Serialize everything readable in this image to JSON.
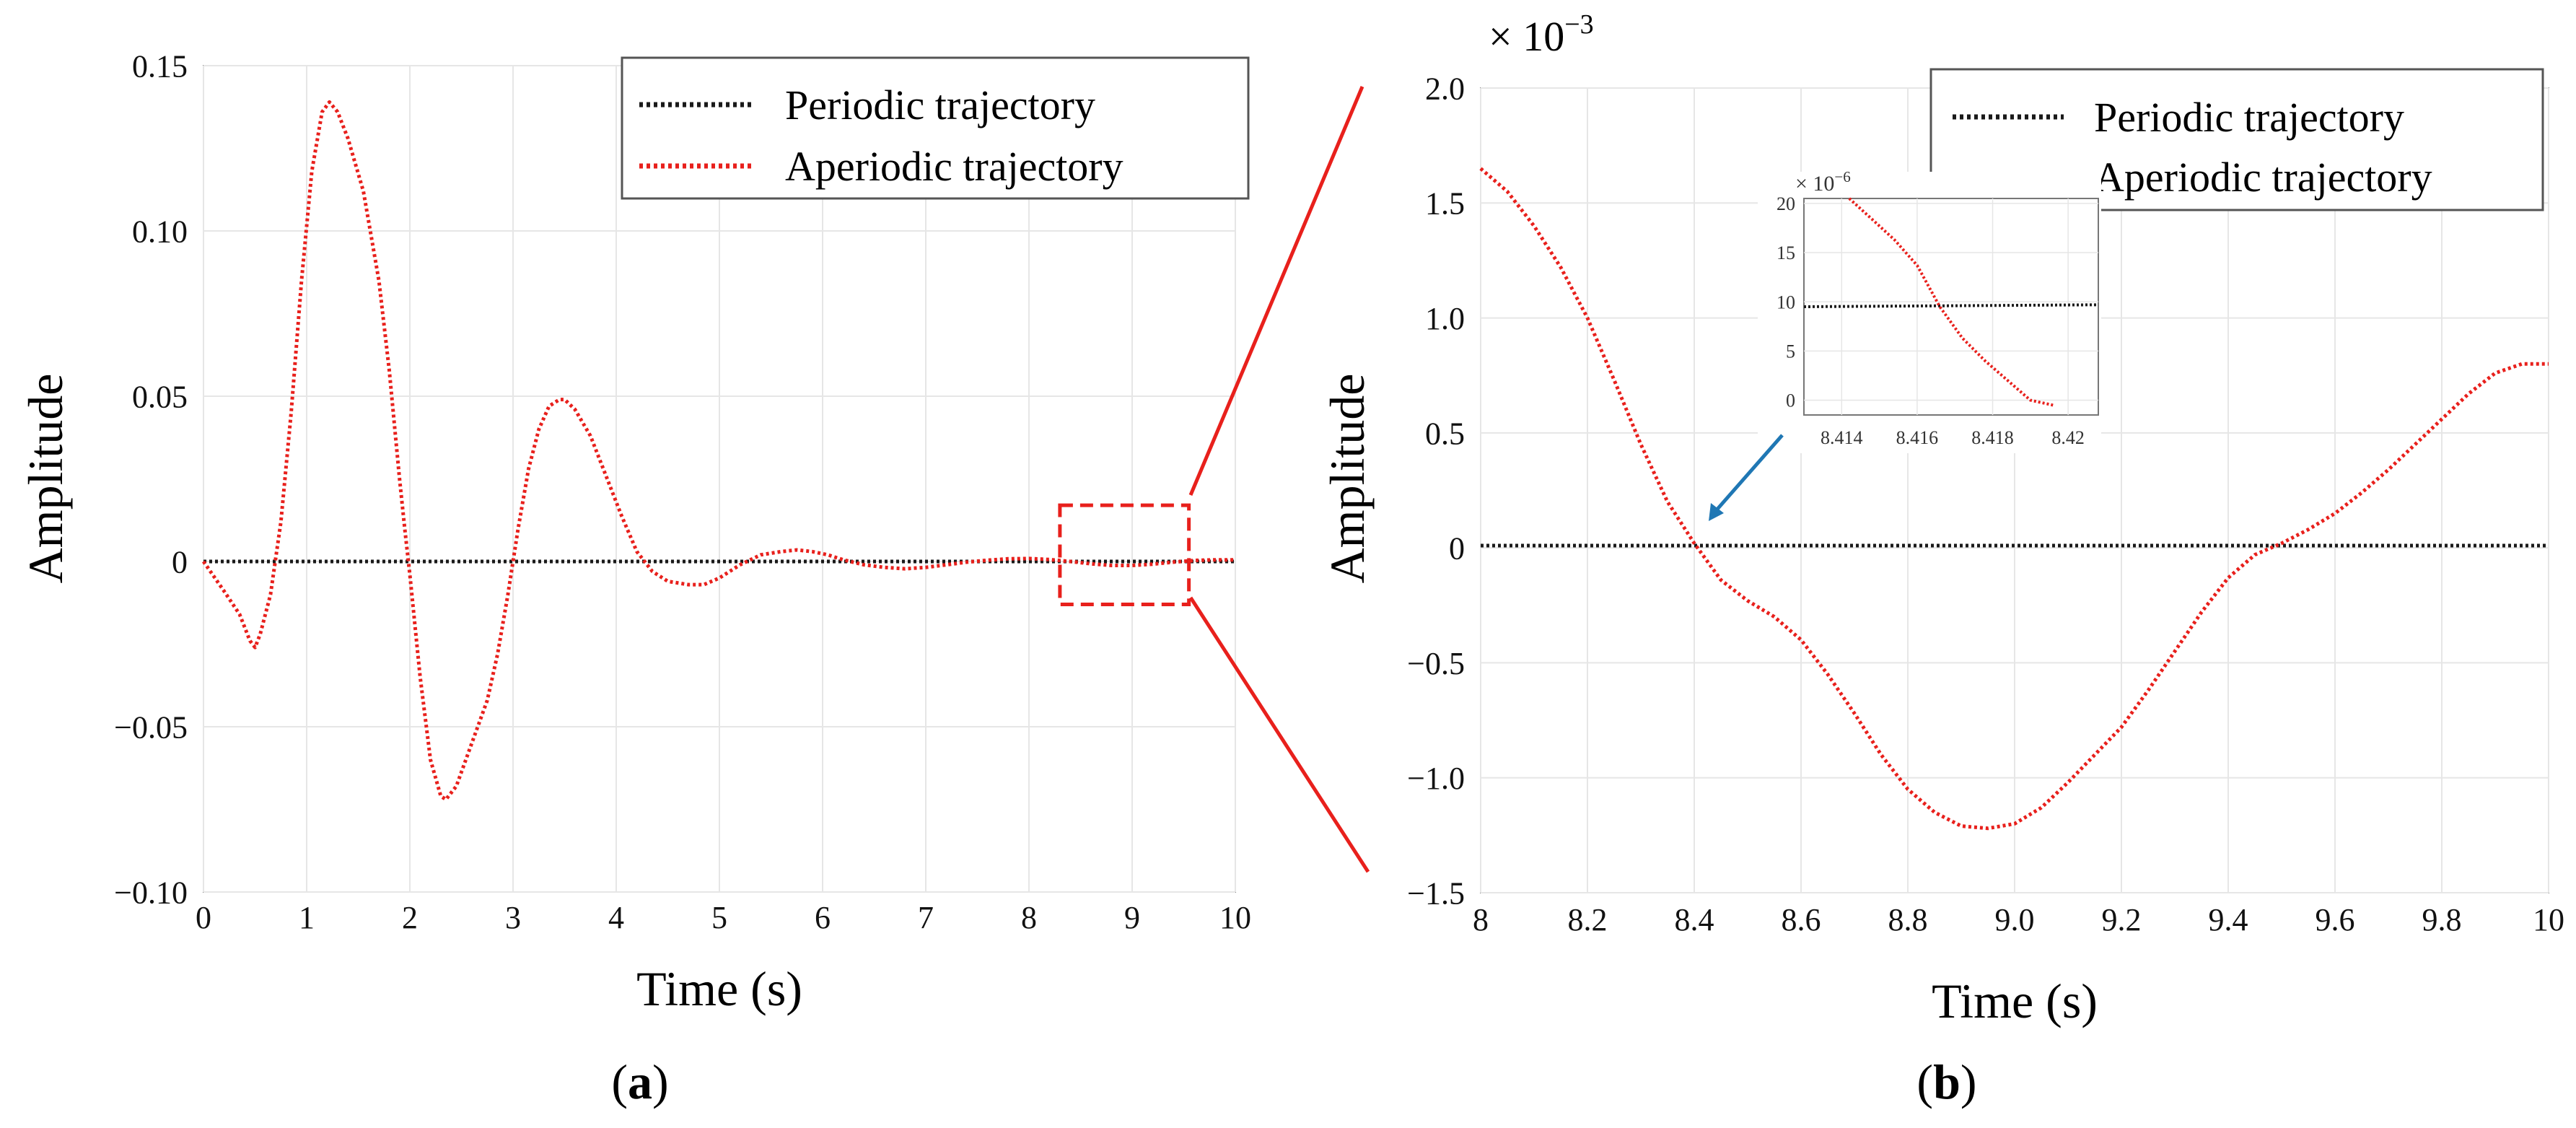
{
  "figure": {
    "panel_a_caption_open": "(",
    "panel_a_caption_letter": "a",
    "panel_a_caption_close": ")",
    "panel_b_caption_open": "(",
    "panel_b_caption_letter": "b",
    "panel_b_caption_close": ")"
  },
  "colors": {
    "periodic": "#1a1a1a",
    "aperiodic": "#e8201c",
    "zoom_box": "#e8201c",
    "arrow": "#1f77b4",
    "grid": "#e6e6e6",
    "axis": "#444444"
  },
  "chart_data": [
    {
      "id": "a",
      "type": "line",
      "title": "",
      "xlabel": "Time (s)",
      "ylabel": "Amplitude",
      "xlim": [
        0,
        10
      ],
      "ylim": [
        -0.1,
        0.15
      ],
      "xticks": [
        0,
        1,
        2,
        3,
        4,
        5,
        6,
        7,
        8,
        9,
        10
      ],
      "xtick_labels": [
        "0",
        "1",
        "2",
        "3",
        "4",
        "5",
        "6",
        "7",
        "8",
        "9",
        "10"
      ],
      "yticks": [
        -0.1,
        -0.05,
        0,
        0.05,
        0.1,
        0.15
      ],
      "ytick_labels": [
        "−0.10",
        "−0.05",
        "0",
        "0.05",
        "0.10",
        "0.15"
      ],
      "grid": true,
      "legend": "top-right",
      "zoom_region": {
        "x": [
          8.3,
          9.55
        ],
        "y": [
          -0.013,
          0.017
        ]
      },
      "series": [
        {
          "name": "Periodic trajectory",
          "style": "dotted",
          "x": [
            0,
            10
          ],
          "y": [
            0,
            0
          ]
        },
        {
          "name": "Aperiodic trajectory",
          "style": "dotted",
          "x": [
            0,
            0.2,
            0.35,
            0.45,
            0.5,
            0.55,
            0.65,
            0.75,
            0.85,
            0.95,
            1.05,
            1.15,
            1.22,
            1.3,
            1.4,
            1.55,
            1.7,
            1.8,
            1.9,
            1.95,
            2.0,
            2.1,
            2.2,
            2.3,
            2.35,
            2.45,
            2.6,
            2.75,
            2.85,
            2.95,
            3.05,
            3.15,
            3.25,
            3.35,
            3.45,
            3.5,
            3.6,
            3.75,
            3.9,
            4.05,
            4.2,
            4.35,
            4.5,
            4.7,
            4.85,
            5.0,
            5.2,
            5.4,
            5.6,
            5.75,
            5.9,
            6.05,
            6.2,
            6.4,
            6.6,
            6.8,
            7.0,
            7.2,
            7.4,
            7.6,
            7.8,
            8.0,
            8.2,
            8.4,
            8.6,
            8.8,
            9.0,
            9.2,
            9.4,
            9.6,
            9.8,
            10.0
          ],
          "y": [
            0,
            -0.009,
            -0.016,
            -0.024,
            -0.026,
            -0.022,
            -0.01,
            0.012,
            0.045,
            0.085,
            0.118,
            0.136,
            0.139,
            0.136,
            0.128,
            0.112,
            0.085,
            0.058,
            0.025,
            0.01,
            -0.004,
            -0.035,
            -0.06,
            -0.071,
            -0.072,
            -0.068,
            -0.055,
            -0.042,
            -0.028,
            -0.01,
            0.01,
            0.028,
            0.04,
            0.047,
            0.049,
            0.049,
            0.046,
            0.038,
            0.026,
            0.014,
            0.003,
            -0.003,
            -0.006,
            -0.007,
            -0.007,
            -0.005,
            -0.001,
            0.002,
            0.003,
            0.0035,
            0.003,
            0.002,
            0.0005,
            -0.001,
            -0.0018,
            -0.0022,
            -0.0018,
            -0.001,
            -0.0002,
            0.0004,
            0.0008,
            0.0009,
            0.0006,
            0.0,
            -0.0007,
            -0.0012,
            -0.0012,
            -0.0008,
            -0.0002,
            0.0003,
            0.0005,
            0.0005
          ]
        }
      ]
    },
    {
      "id": "b",
      "type": "line",
      "title": "",
      "xlabel": "Time (s)",
      "ylabel": "Amplitude",
      "scale_label_prefix": "× 10",
      "scale_label_exponent": "−3",
      "xlim": [
        8.0,
        10.0
      ],
      "ylim": [
        -1.5,
        2.0
      ],
      "xticks": [
        8.0,
        8.2,
        8.4,
        8.6,
        8.8,
        9.0,
        9.2,
        9.4,
        9.6,
        9.8,
        10.0
      ],
      "xtick_labels": [
        "8",
        "8.2",
        "8.4",
        "8.6",
        "8.8",
        "9.0",
        "9.2",
        "9.4",
        "9.6",
        "9.8",
        "10"
      ],
      "yticks": [
        -1.5,
        -1.0,
        -0.5,
        0,
        0.5,
        1.0,
        1.5,
        2.0
      ],
      "ytick_labels": [
        "−1.5",
        "−1.0",
        "−0.5",
        "0",
        "0.5",
        "1.0",
        "1.5",
        "2.0"
      ],
      "grid": true,
      "legend": "top-right",
      "series": [
        {
          "name": "Periodic trajectory",
          "style": "dotted",
          "x": [
            8.0,
            10.0
          ],
          "y": [
            0.01,
            0.01
          ]
        },
        {
          "name": "Aperiodic trajectory",
          "style": "dotted",
          "x": [
            8.0,
            8.05,
            8.1,
            8.15,
            8.2,
            8.25,
            8.3,
            8.35,
            8.4,
            8.45,
            8.5,
            8.55,
            8.6,
            8.65,
            8.7,
            8.75,
            8.8,
            8.85,
            8.9,
            8.95,
            9.0,
            9.05,
            9.1,
            9.15,
            9.2,
            9.25,
            9.3,
            9.35,
            9.4,
            9.45,
            9.5,
            9.55,
            9.6,
            9.65,
            9.7,
            9.75,
            9.8,
            9.85,
            9.9,
            9.95,
            10.0
          ],
          "y": [
            1.65,
            1.55,
            1.4,
            1.22,
            1.0,
            0.73,
            0.45,
            0.2,
            0.02,
            -0.14,
            -0.23,
            -0.3,
            -0.4,
            -0.55,
            -0.72,
            -0.9,
            -1.05,
            -1.15,
            -1.21,
            -1.22,
            -1.2,
            -1.13,
            -1.02,
            -0.9,
            -0.78,
            -0.62,
            -0.45,
            -0.28,
            -0.13,
            -0.03,
            0.02,
            0.08,
            0.15,
            0.24,
            0.34,
            0.45,
            0.56,
            0.67,
            0.76,
            0.8,
            0.8
          ]
        }
      ],
      "inset": {
        "scale_label_prefix": "× 10",
        "scale_label_exponent": "−6",
        "xlim": [
          8.413,
          8.4208
        ],
        "ylim": [
          -1.5,
          20.5
        ],
        "xticks": [
          8.414,
          8.416,
          8.418,
          8.42
        ],
        "xtick_labels": [
          "8.414",
          "8.416",
          "8.418",
          "8.42"
        ],
        "yticks": [
          0,
          5,
          10,
          15,
          20
        ],
        "ytick_labels": [
          "0",
          "5",
          "10",
          "15",
          "20"
        ],
        "grid": true,
        "series": [
          {
            "name": "Periodic trajectory",
            "style": "dotted",
            "x": [
              8.413,
              8.4208
            ],
            "y": [
              9.5,
              9.7
            ]
          },
          {
            "name": "Aperiodic trajectory",
            "style": "dotted",
            "x": [
              8.4142,
              8.4148,
              8.4154,
              8.416,
              8.4166,
              8.4172,
              8.4178,
              8.4184,
              8.419,
              8.4196
            ],
            "y": [
              20.5,
              18.4,
              16.3,
              13.7,
              9.5,
              6.3,
              4.0,
              2.0,
              0.0,
              -0.5
            ]
          }
        ]
      }
    }
  ]
}
